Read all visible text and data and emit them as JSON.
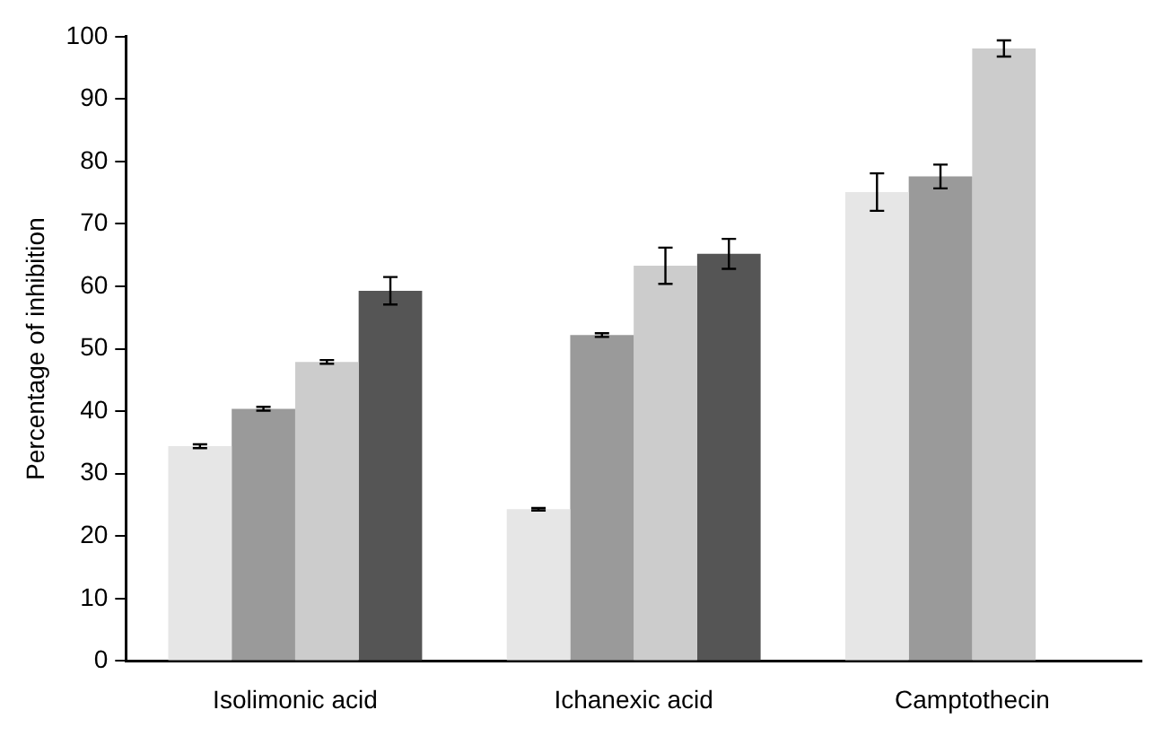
{
  "chart_data": {
    "type": "bar",
    "ylabel": "Percentage of inhibition",
    "categories": [
      "Isolimonic acid",
      "Ichanexic acid",
      "Camptothecin"
    ],
    "series": [
      {
        "color": "#e6e6e6",
        "values": [
          34.4,
          24.3,
          75.1
        ],
        "errors": [
          0.3,
          0.2,
          3.0
        ]
      },
      {
        "color": "#9a9a9a",
        "values": [
          40.4,
          52.2,
          77.6
        ],
        "errors": [
          0.3,
          0.3,
          1.9
        ]
      },
      {
        "color": "#cccccc",
        "values": [
          47.9,
          63.3,
          98.1
        ],
        "errors": [
          0.3,
          2.9,
          1.3
        ]
      },
      {
        "color": "#555555",
        "values": [
          59.3,
          65.2,
          null
        ],
        "errors": [
          2.2,
          2.4,
          null
        ]
      }
    ],
    "ylim": [
      0,
      100
    ],
    "yticks": [
      0,
      10,
      20,
      30,
      40,
      50,
      60,
      70,
      80,
      90,
      100
    ],
    "grid": false,
    "legend": false
  }
}
